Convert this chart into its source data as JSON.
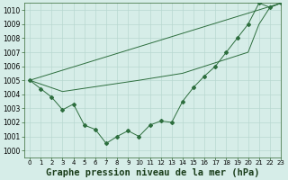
{
  "title": "Graphe pression niveau de la mer (hPa)",
  "bg_color": "#d6ede8",
  "plot_bg_color": "#d6ede8",
  "grid_color": "#b8d8d0",
  "line_color": "#2d6e3e",
  "xlim": [
    -0.5,
    23
  ],
  "ylim": [
    999.5,
    1010.5
  ],
  "yticks": [
    1000,
    1001,
    1002,
    1003,
    1004,
    1005,
    1006,
    1007,
    1008,
    1009,
    1010
  ],
  "xticks": [
    0,
    1,
    2,
    3,
    4,
    5,
    6,
    7,
    8,
    9,
    10,
    11,
    12,
    13,
    14,
    15,
    16,
    17,
    18,
    19,
    20,
    21,
    22,
    23
  ],
  "series1_x": [
    0,
    1,
    2,
    3,
    4,
    5,
    6,
    7,
    8,
    9,
    10,
    11,
    12,
    13,
    14,
    15,
    16,
    17,
    18,
    19,
    20,
    21,
    22,
    23
  ],
  "series1_y": [
    1005.0,
    1004.4,
    1003.8,
    1002.9,
    1003.3,
    1001.8,
    1001.5,
    1000.5,
    1001.0,
    1001.4,
    1001.0,
    1001.8,
    1002.1,
    1002.0,
    1003.5,
    1004.5,
    1005.3,
    1006.0,
    1007.0,
    1008.0,
    1009.0,
    1010.5,
    1010.2,
    1010.5
  ],
  "series2_x": [
    0,
    23
  ],
  "series2_y": [
    1005.0,
    1010.5
  ],
  "series3_x": [
    0,
    3,
    10,
    14,
    20,
    21,
    22,
    23
  ],
  "series3_y": [
    1005.0,
    1004.2,
    1005.0,
    1005.5,
    1007.0,
    1009.0,
    1010.2,
    1010.5
  ],
  "title_fontsize": 7.5,
  "tick_fontsize": 5.5
}
